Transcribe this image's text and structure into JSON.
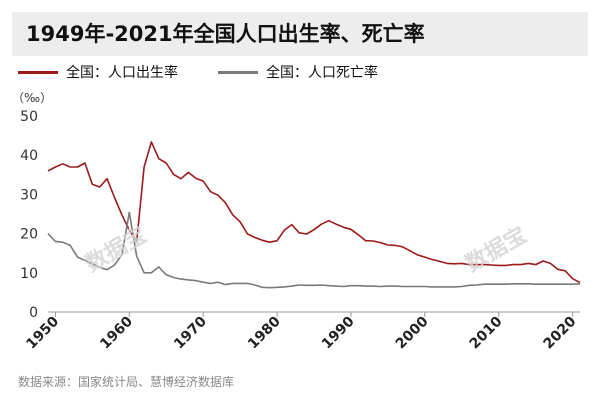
{
  "title": "1949年-2021年全国人口出生率、死亡率",
  "source": "数据来源：国家统计局、慧博经济数据库",
  "watermark": "数据宝",
  "colors": {
    "birth": "#9b1b1b",
    "death": "#7a7a7a",
    "axis": "#999999"
  },
  "chart_data": {
    "type": "line",
    "unit_label": "（‰）",
    "ylim": [
      0,
      50
    ],
    "yticks": [
      0,
      10,
      20,
      30,
      40,
      50
    ],
    "xlim": [
      1949,
      2021
    ],
    "xticks": [
      1950,
      1960,
      1970,
      1980,
      1990,
      2000,
      2010,
      2020
    ],
    "grid": false,
    "legend_position": "top-left",
    "series": [
      {
        "name": "全国：人口出生率",
        "color": "#9b1b1b",
        "x": [
          1949,
          1950,
          1951,
          1952,
          1953,
          1954,
          1955,
          1956,
          1957,
          1958,
          1959,
          1960,
          1961,
          1962,
          1963,
          1964,
          1965,
          1966,
          1967,
          1968,
          1969,
          1970,
          1971,
          1972,
          1973,
          1974,
          1975,
          1976,
          1977,
          1978,
          1979,
          1980,
          1981,
          1982,
          1983,
          1984,
          1985,
          1986,
          1987,
          1988,
          1989,
          1990,
          1991,
          1992,
          1993,
          1994,
          1995,
          1996,
          1997,
          1998,
          1999,
          2000,
          2001,
          2002,
          2003,
          2004,
          2005,
          2006,
          2007,
          2008,
          2009,
          2010,
          2011,
          2012,
          2013,
          2014,
          2015,
          2016,
          2017,
          2018,
          2019,
          2020,
          2021
        ],
        "values": [
          36.0,
          37.0,
          37.8,
          37.0,
          37.0,
          38.0,
          32.6,
          31.9,
          34.0,
          29.2,
          24.8,
          20.9,
          18.0,
          37.0,
          43.4,
          39.1,
          38.0,
          35.1,
          34.0,
          35.6,
          34.1,
          33.4,
          30.7,
          29.8,
          27.9,
          24.8,
          23.0,
          19.9,
          19.0,
          18.3,
          17.8,
          18.2,
          20.9,
          22.3,
          20.2,
          19.9,
          21.0,
          22.4,
          23.3,
          22.4,
          21.6,
          21.1,
          19.7,
          18.2,
          18.1,
          17.7,
          17.1,
          17.0,
          16.6,
          15.6,
          14.6,
          14.0,
          13.4,
          12.9,
          12.4,
          12.3,
          12.4,
          12.1,
          12.1,
          12.1,
          12.0,
          11.9,
          11.9,
          12.1,
          12.1,
          12.4,
          12.1,
          13.0,
          12.4,
          10.9,
          10.5,
          8.5,
          7.5
        ]
      },
      {
        "name": "全国：人口死亡率",
        "color": "#7a7a7a",
        "x": [
          1949,
          1950,
          1951,
          1952,
          1953,
          1954,
          1955,
          1956,
          1957,
          1958,
          1959,
          1960,
          1961,
          1962,
          1963,
          1964,
          1965,
          1966,
          1967,
          1968,
          1969,
          1970,
          1971,
          1972,
          1973,
          1974,
          1975,
          1976,
          1977,
          1978,
          1979,
          1980,
          1981,
          1982,
          1983,
          1984,
          1985,
          1986,
          1987,
          1988,
          1989,
          1990,
          1991,
          1992,
          1993,
          1994,
          1995,
          1996,
          1997,
          1998,
          1999,
          2000,
          2001,
          2002,
          2003,
          2004,
          2005,
          2006,
          2007,
          2008,
          2009,
          2010,
          2011,
          2012,
          2013,
          2014,
          2015,
          2016,
          2017,
          2018,
          2019,
          2020,
          2021
        ],
        "values": [
          20.0,
          18.0,
          17.8,
          17.0,
          14.0,
          13.2,
          12.3,
          11.4,
          10.8,
          12.0,
          14.6,
          25.4,
          14.2,
          10.0,
          10.0,
          11.5,
          9.5,
          8.8,
          8.4,
          8.2,
          8.0,
          7.6,
          7.3,
          7.6,
          7.0,
          7.3,
          7.3,
          7.3,
          6.9,
          6.3,
          6.2,
          6.3,
          6.4,
          6.6,
          6.9,
          6.8,
          6.8,
          6.9,
          6.7,
          6.6,
          6.5,
          6.7,
          6.7,
          6.6,
          6.6,
          6.5,
          6.6,
          6.6,
          6.5,
          6.5,
          6.5,
          6.5,
          6.4,
          6.4,
          6.4,
          6.4,
          6.5,
          6.8,
          6.9,
          7.1,
          7.1,
          7.1,
          7.1,
          7.2,
          7.2,
          7.2,
          7.1,
          7.1,
          7.1,
          7.1,
          7.1,
          7.1,
          7.2
        ]
      }
    ]
  }
}
